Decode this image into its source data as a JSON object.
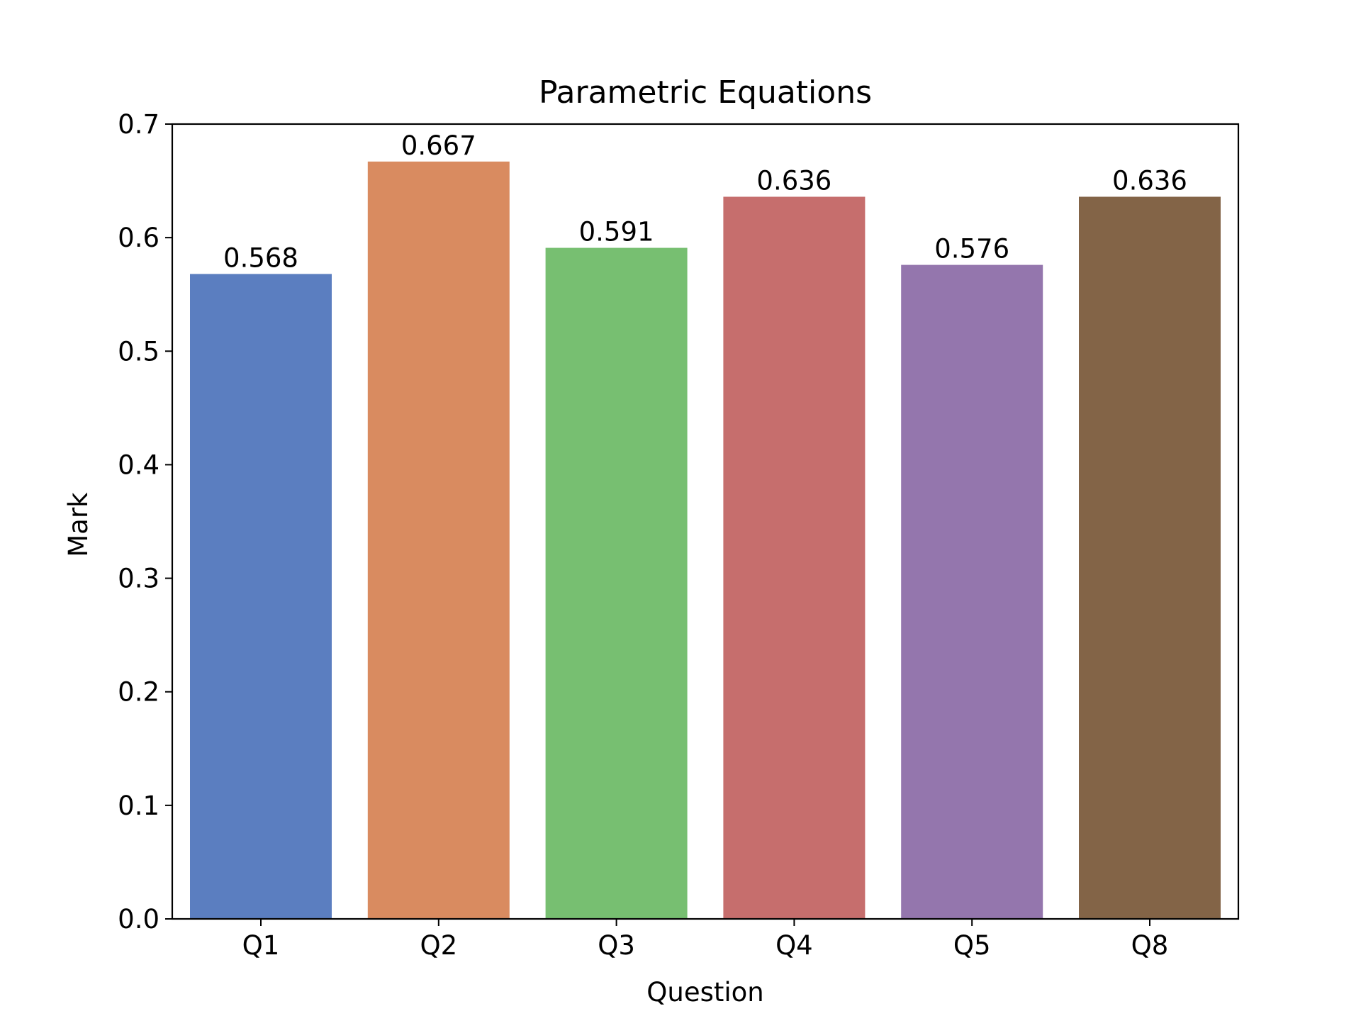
{
  "chart_data": {
    "type": "bar",
    "title": "Parametric Equations",
    "xlabel": "Question",
    "ylabel": "Mark",
    "categories": [
      "Q1",
      "Q2",
      "Q3",
      "Q4",
      "Q5",
      "Q8"
    ],
    "values": [
      0.568,
      0.667,
      0.591,
      0.636,
      0.576,
      0.636
    ],
    "value_labels": [
      "0.568",
      "0.667",
      "0.591",
      "0.636",
      "0.576",
      "0.636"
    ],
    "colors": [
      "#5b7ec0",
      "#d98b60",
      "#77bf71",
      "#c66e6d",
      "#9476ad",
      "#836447"
    ],
    "ylim": [
      0,
      0.7
    ],
    "yticks": [
      0.0,
      0.1,
      0.2,
      0.3,
      0.4,
      0.5,
      0.6,
      0.7
    ],
    "ytick_labels": [
      "0.0",
      "0.1",
      "0.2",
      "0.3",
      "0.4",
      "0.5",
      "0.6",
      "0.7"
    ],
    "grid": false,
    "legend": "none"
  }
}
